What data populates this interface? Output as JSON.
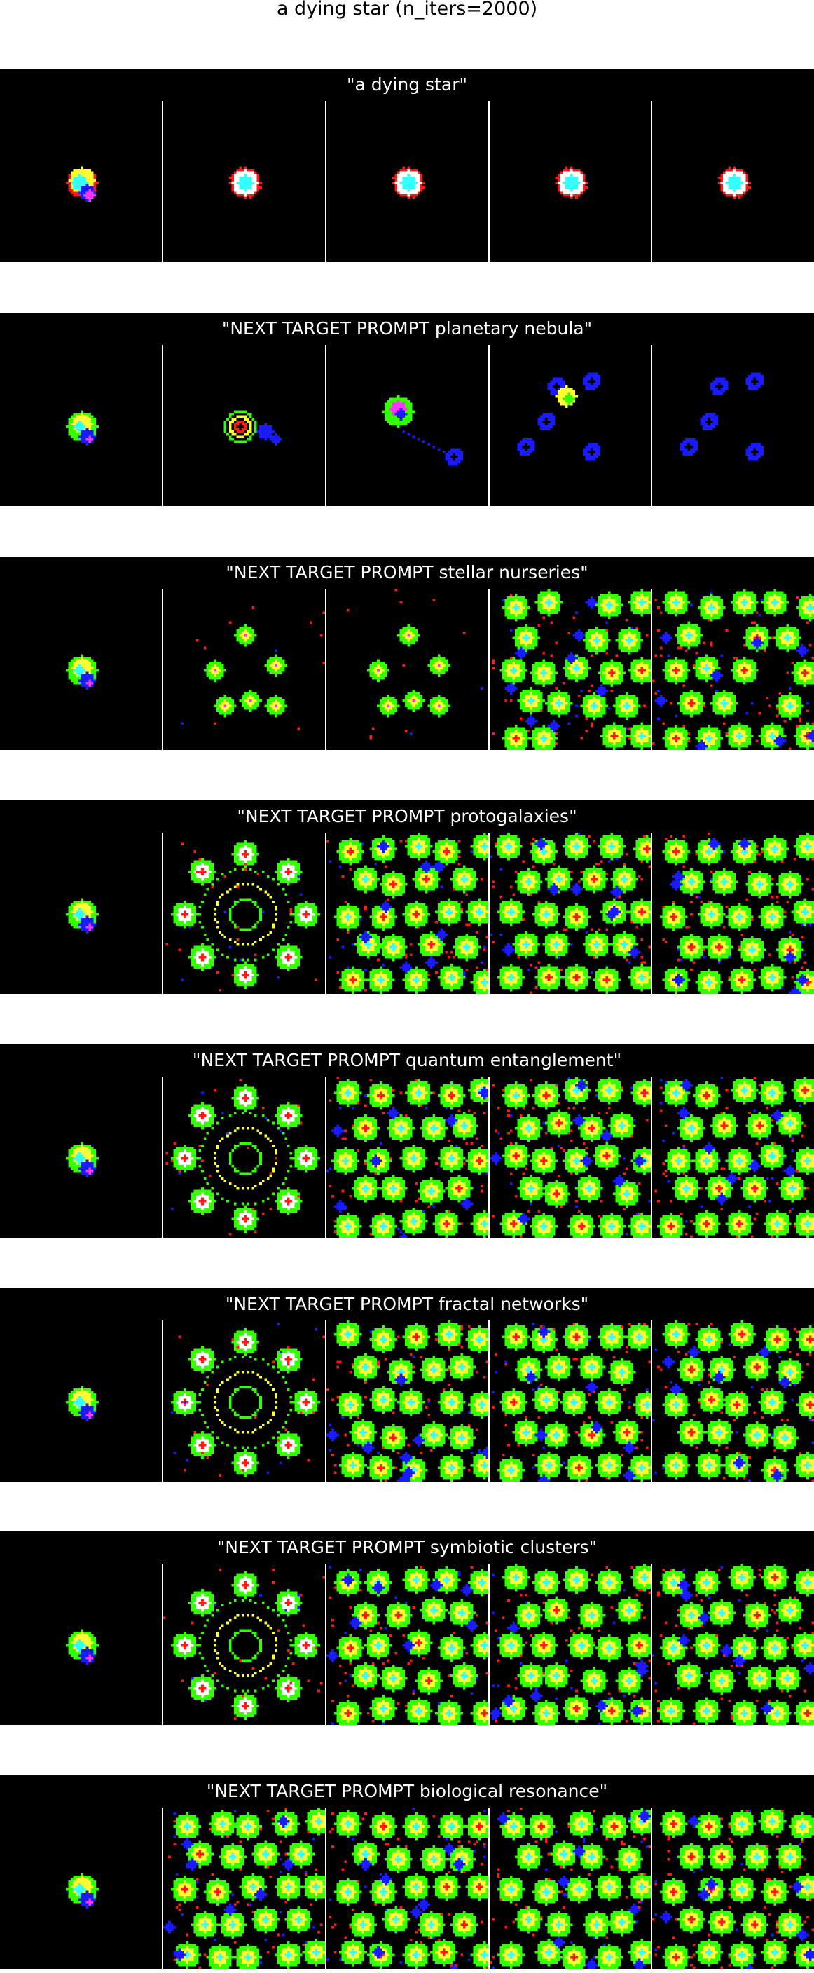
{
  "title": "a dying star (n_iters=2000)",
  "sections": [
    {
      "label": "\"a dying star\"",
      "frames": [
        {
          "kind": "star",
          "variant": 0
        },
        {
          "kind": "star",
          "variant": 1
        },
        {
          "kind": "star",
          "variant": 1
        },
        {
          "kind": "star",
          "variant": 1
        },
        {
          "kind": "star",
          "variant": 1
        }
      ]
    },
    {
      "label": "\"NEXT TARGET PROMPT planetary nebula\"",
      "frames": [
        {
          "kind": "seed",
          "density": 0
        },
        {
          "kind": "ring-burst",
          "density": 0.15
        },
        {
          "kind": "scatter-rings",
          "density": 0.2
        },
        {
          "kind": "blue-rings",
          "density": 0.25
        },
        {
          "kind": "blue-rings",
          "density": 0.3
        }
      ]
    },
    {
      "label": "\"NEXT TARGET PROMPT stellar nurseries\"",
      "frames": [
        {
          "kind": "seed",
          "density": 0
        },
        {
          "kind": "blobs",
          "density": 0.25
        },
        {
          "kind": "blobs",
          "density": 0.55
        },
        {
          "kind": "field",
          "density": 0.85
        },
        {
          "kind": "field",
          "density": 0.9
        }
      ]
    },
    {
      "label": "\"NEXT TARGET PROMPT protogalaxies\"",
      "frames": [
        {
          "kind": "seed",
          "density": 0
        },
        {
          "kind": "spiral",
          "density": 1.0
        },
        {
          "kind": "field",
          "density": 1.0
        },
        {
          "kind": "field",
          "density": 1.0
        },
        {
          "kind": "field",
          "density": 1.0
        }
      ]
    },
    {
      "label": "\"NEXT TARGET PROMPT quantum entanglement\"",
      "frames": [
        {
          "kind": "seed",
          "density": 0
        },
        {
          "kind": "spiral",
          "density": 1.0
        },
        {
          "kind": "field",
          "density": 1.0
        },
        {
          "kind": "field",
          "density": 1.0
        },
        {
          "kind": "field",
          "density": 1.0
        }
      ]
    },
    {
      "label": "\"NEXT TARGET PROMPT fractal networks\"",
      "frames": [
        {
          "kind": "seed",
          "density": 0
        },
        {
          "kind": "spiral",
          "density": 1.0
        },
        {
          "kind": "field",
          "density": 1.0
        },
        {
          "kind": "field",
          "density": 1.0
        },
        {
          "kind": "field",
          "density": 1.0
        }
      ]
    },
    {
      "label": "\"NEXT TARGET PROMPT symbiotic clusters\"",
      "frames": [
        {
          "kind": "seed",
          "density": 0
        },
        {
          "kind": "spiral",
          "density": 1.0
        },
        {
          "kind": "field",
          "density": 1.0
        },
        {
          "kind": "field",
          "density": 1.0
        },
        {
          "kind": "field",
          "density": 1.0
        }
      ]
    },
    {
      "label": "\"NEXT TARGET PROMPT biological resonance\"",
      "frames": [
        {
          "kind": "seed",
          "density": 0
        },
        {
          "kind": "field",
          "density": 1.0
        },
        {
          "kind": "field",
          "density": 1.0
        },
        {
          "kind": "field",
          "density": 1.0
        },
        {
          "kind": "field",
          "density": 1.0
        }
      ]
    }
  ],
  "colors": {
    "header_bg": "#000000",
    "header_text": "#ffffff",
    "frame_bg": "#000000",
    "green": "#33ff00",
    "yellow": "#ffff33",
    "red": "#ff1a1a",
    "blue": "#1a1aff",
    "cyan": "#33ffff",
    "magenta": "#ff33ff",
    "white": "#ffffff"
  }
}
